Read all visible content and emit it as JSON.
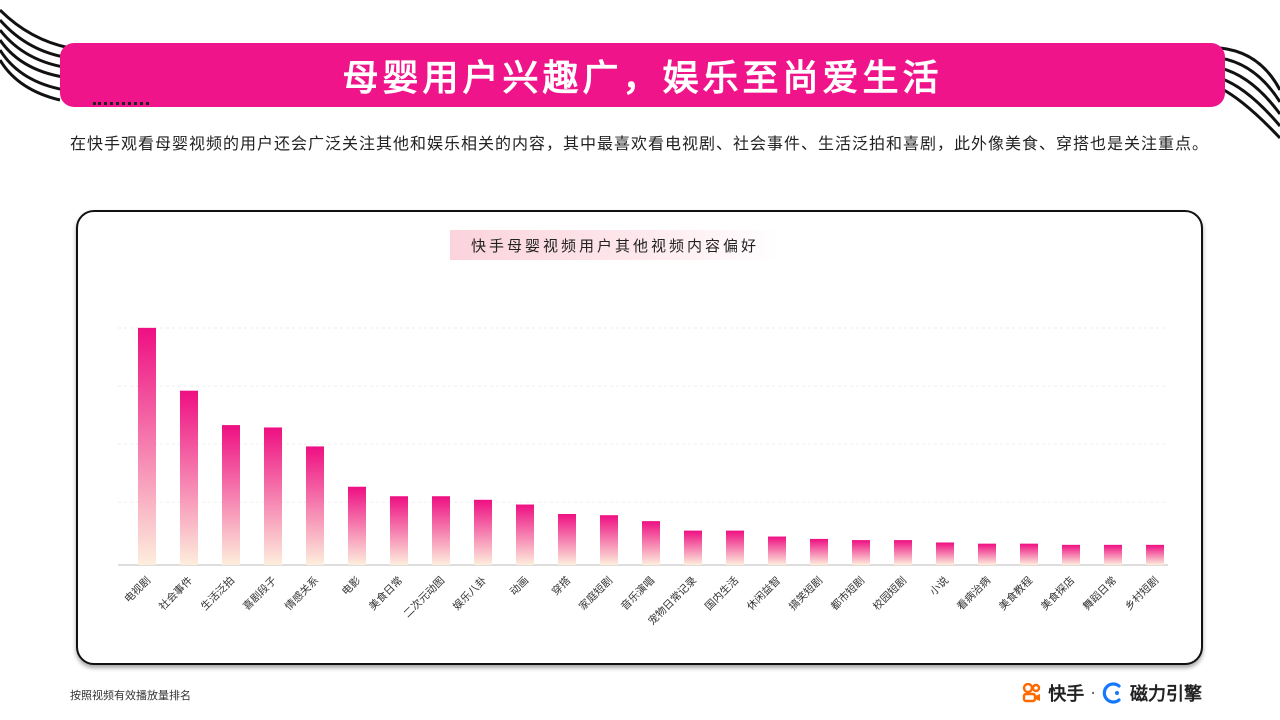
{
  "banner": {
    "title": "母婴用户兴趣广，娱乐至尚爱生活"
  },
  "intro": {
    "text": "在快手观看母婴视频的用户还会广泛关注其他和娱乐相关的内容，其中最喜欢看电视剧、社会事件、生活泛拍和喜剧，此外像美食、穿搭也是关注重点。"
  },
  "footnote": "按照视频有效播放量排名",
  "brand": {
    "kuaishou": "快手",
    "separator": "·",
    "cili": "磁力引擎"
  },
  "colors": {
    "accent": "#f0148a",
    "bar_top": "#ee0f82",
    "bar_bottom": "#fdeedc"
  },
  "chart_data": {
    "type": "bar",
    "title": "快手母婴视频用户其他视频内容偏好",
    "categories": [
      "电视剧",
      "社会事件",
      "生活泛拍",
      "喜剧段子",
      "情感关系",
      "电影",
      "美食日常",
      "二次元动图",
      "娱乐八卦",
      "动画",
      "穿搭",
      "家庭短剧",
      "音乐演唱",
      "宠物日常记录",
      "国内生活",
      "休闲益智",
      "搞笑短剧",
      "都市短剧",
      "校园短剧",
      "小说",
      "看病治病",
      "美食教程",
      "美食探店",
      "舞蹈日常",
      "乡村短剧"
    ],
    "values": [
      100,
      73.5,
      59,
      58,
      50,
      33,
      29,
      29,
      27.5,
      25.5,
      21.5,
      21,
      18.5,
      14.5,
      14.5,
      12,
      11,
      10.5,
      10.5,
      9.5,
      9,
      9,
      8.5,
      8.5,
      8.5
    ],
    "ylim": [
      0,
      105
    ],
    "grid": true,
    "legend": "none"
  }
}
